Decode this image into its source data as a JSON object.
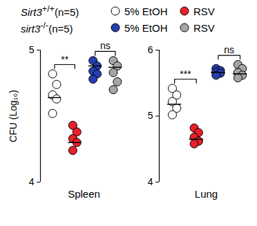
{
  "genotypes": [
    {
      "name": "Sirt3",
      "superscript": "+/+",
      "n_label": "(n=5)"
    },
    {
      "name": "sirt3",
      "superscript": "-/-",
      "n_label": "(n=5)"
    }
  ],
  "chart_data": [
    {
      "type": "scatter",
      "xlabel": "Spleen",
      "ylabel": "CFU (Log₁₀)",
      "ylim": [
        4,
        5
      ],
      "yticks": [
        4,
        5
      ],
      "series": [
        {
          "name": "5% EtOH",
          "genotype": 0,
          "color": "#ffffff",
          "values": [
            4.82,
            4.74,
            4.66,
            4.63,
            4.52
          ],
          "median": 4.64
        },
        {
          "name": "RSV",
          "genotype": 0,
          "color": "#e8202a",
          "values": [
            4.43,
            4.38,
            4.33,
            4.3,
            4.24
          ],
          "median": 4.3
        },
        {
          "name": "5% EtOH",
          "genotype": 1,
          "color": "#2640b0",
          "values": [
            4.92,
            4.88,
            4.84,
            4.82,
            4.78
          ],
          "median": 4.88
        },
        {
          "name": "RSV",
          "genotype": 1,
          "color": "#a6a6a6",
          "values": [
            4.92,
            4.88,
            4.83,
            4.76,
            4.7
          ],
          "median": 4.87
        }
      ],
      "annotations": [
        {
          "between": [
            0,
            1
          ],
          "label": "**"
        },
        {
          "between": [
            2,
            3
          ],
          "label": "ns"
        }
      ]
    },
    {
      "type": "scatter",
      "xlabel": "Lung",
      "ylim": [
        4,
        6
      ],
      "yticks": [
        4,
        5,
        6
      ],
      "series": [
        {
          "name": "5% EtOH",
          "genotype": 0,
          "color": "#ffffff",
          "values": [
            5.42,
            5.32,
            5.22,
            5.12,
            5.02
          ],
          "median": 5.18
        },
        {
          "name": "RSV",
          "genotype": 0,
          "color": "#e8202a",
          "values": [
            4.82,
            4.75,
            4.68,
            4.62,
            4.58
          ],
          "median": 4.65
        },
        {
          "name": "5% EtOH",
          "genotype": 1,
          "color": "#2640b0",
          "values": [
            5.72,
            5.69,
            5.67,
            5.65,
            5.62
          ],
          "median": 5.66
        },
        {
          "name": "RSV",
          "genotype": 1,
          "color": "#a6a6a6",
          "values": [
            5.78,
            5.72,
            5.66,
            5.62,
            5.58
          ],
          "median": 5.64
        }
      ],
      "annotations": [
        {
          "between": [
            0,
            1
          ],
          "label": "***"
        },
        {
          "between": [
            2,
            3
          ],
          "label": "ns"
        }
      ]
    }
  ]
}
